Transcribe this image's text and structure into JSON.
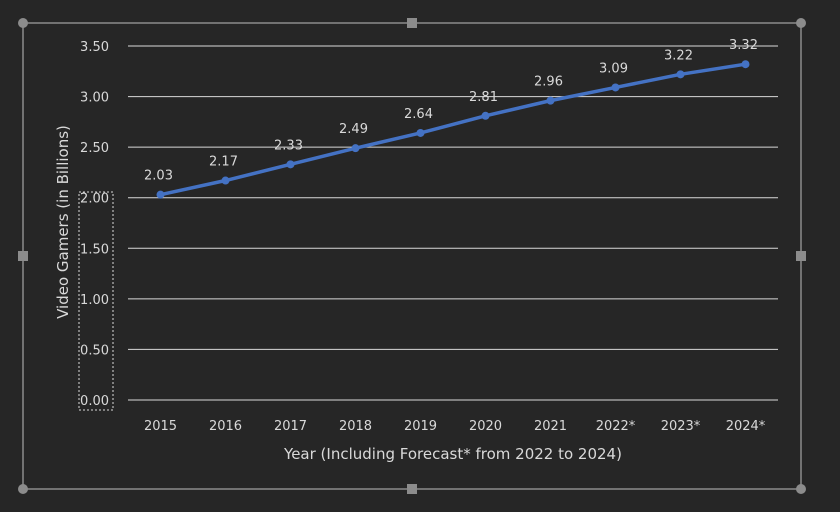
{
  "chart_data": {
    "type": "line",
    "title": "",
    "xlabel": "Year (Including Forecast* from 2022 to 2024)",
    "ylabel": "Video Gamers (in Billions)",
    "categories": [
      "2015",
      "2016",
      "2017",
      "2018",
      "2019",
      "2020",
      "2021",
      "2022*",
      "2023*",
      "2024*"
    ],
    "values": [
      2.03,
      2.17,
      2.33,
      2.49,
      2.64,
      2.81,
      2.96,
      3.09,
      3.22,
      3.32
    ],
    "value_labels": [
      "2.03",
      "2.17",
      "2.33",
      "2.49",
      "2.64",
      "2.81",
      "2.96",
      "3.09",
      "3.22",
      "3.32"
    ],
    "yticks": [
      "0.00",
      "0.50",
      "1.00",
      "1.50",
      "2.00",
      "2.50",
      "3.00",
      "3.50"
    ],
    "ylim": [
      0,
      3.5
    ],
    "grid": true,
    "legend": "none",
    "colors": {
      "line": "#4472c4",
      "background": "#262626",
      "text": "#d9d9d9",
      "grid": "#d9d9d9",
      "frame": "#8c8c8c",
      "handle": "#8c8c8c"
    }
  }
}
